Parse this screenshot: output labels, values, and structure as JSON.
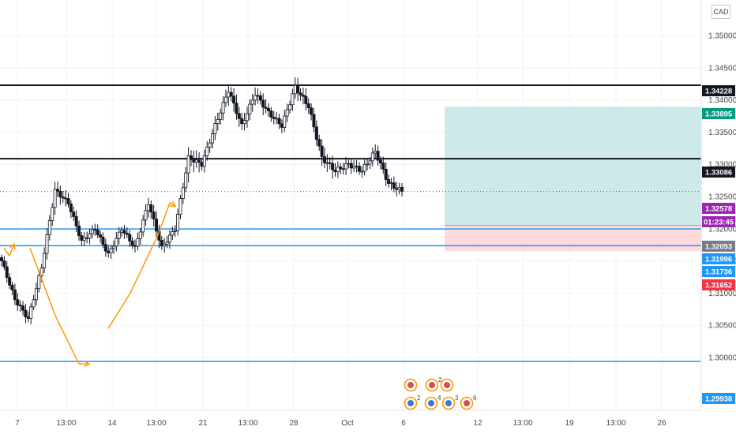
{
  "currency": "CAD",
  "colors": {
    "candle": "#131722",
    "horizontal_line": "#131722",
    "blue_line": "#2196f3",
    "price_line": "#9c27b0",
    "arrow": "#ff9800",
    "profit_zone": "#b2dfdb",
    "loss_zone": "#ffcdd2",
    "target_tag": "#089981",
    "stop_tag": "#f23645",
    "gray_tag": "#787b86",
    "dark_tag": "#131722",
    "blue_tag": "#2196f3",
    "purple_tag": "#9c27b0"
  },
  "chart_data": {
    "type": "candlestick",
    "ylim": [
      1.2925,
      1.3562
    ],
    "y_ticks": [
      "1.35000",
      "1.34500",
      "1.34000",
      "1.33500",
      "1.33000",
      "1.32500",
      "1.32000",
      "1.31500",
      "1.31000",
      "1.30500",
      "1.30000"
    ],
    "x_ticks": [
      "7",
      "13:00",
      "14",
      "13:00",
      "21",
      "13:00",
      "28",
      "Oct",
      "6",
      "12",
      "13:00",
      "19",
      "13:00",
      "26"
    ],
    "price_tags": [
      {
        "label": "1.34228",
        "kind": "dark"
      },
      {
        "label": "1.33895",
        "kind": "target"
      },
      {
        "label": "1.33086",
        "kind": "dark"
      },
      {
        "label": "1.32578",
        "kind": "purple"
      },
      {
        "label": "01:23:45",
        "kind": "purple"
      },
      {
        "label": "1.32053",
        "kind": "gray"
      },
      {
        "label": "1.31996",
        "kind": "blue"
      },
      {
        "label": "1.31736",
        "kind": "blue"
      },
      {
        "label": "1.31652",
        "kind": "stop"
      },
      {
        "label": "1.29938",
        "kind": "blue"
      }
    ],
    "horizontal_lines": [
      {
        "price": 1.34228,
        "style": "black"
      },
      {
        "price": 1.33086,
        "style": "black"
      },
      {
        "price": 1.31996,
        "style": "blue"
      },
      {
        "price": 1.31736,
        "style": "blue"
      },
      {
        "price": 1.29938,
        "style": "blue"
      }
    ],
    "current_price": 1.32578,
    "position": {
      "target": 1.33895,
      "entry": 1.32053,
      "stop": 1.31652
    },
    "event_counts": [
      "2",
      "2",
      "4",
      "3",
      "6"
    ],
    "anchors": [
      {
        "price": 1.315,
        "move": 1.3
      },
      {
        "price": 1.309,
        "move": 1.6
      },
      {
        "price": 1.306,
        "move": 1.4
      },
      {
        "price": 1.314,
        "move": 1.6
      },
      {
        "price": 1.326,
        "move": 1.9
      },
      {
        "price": 1.324,
        "move": 1.5
      },
      {
        "price": 1.318,
        "move": 1.5
      },
      {
        "price": 1.32,
        "move": 1.4
      },
      {
        "price": 1.316,
        "move": 1.5
      },
      {
        "price": 1.32,
        "move": 1.4
      },
      {
        "price": 1.317,
        "move": 1.5
      },
      {
        "price": 1.324,
        "move": 1.9
      },
      {
        "price": 1.317,
        "move": 1.6
      },
      {
        "price": 1.32,
        "move": 1.4
      },
      {
        "price": 1.331,
        "move": 2.4
      },
      {
        "price": 1.33,
        "move": 1.5
      },
      {
        "price": 1.336,
        "move": 1.8
      },
      {
        "price": 1.3415,
        "move": 2.1
      },
      {
        "price": 1.336,
        "move": 1.9
      },
      {
        "price": 1.341,
        "move": 1.9
      },
      {
        "price": 1.338,
        "move": 1.5
      },
      {
        "price": 1.336,
        "move": 1.5
      },
      {
        "price": 1.342,
        "move": 2.0
      },
      {
        "price": 1.339,
        "move": 1.6
      },
      {
        "price": 1.331,
        "move": 2.2
      },
      {
        "price": 1.329,
        "move": 1.6
      },
      {
        "price": 1.33,
        "move": 1.5
      },
      {
        "price": 1.329,
        "move": 1.5
      },
      {
        "price": 1.332,
        "move": 1.6
      },
      {
        "price": 1.327,
        "move": 1.6
      },
      {
        "price": 1.3258,
        "move": 1.3
      }
    ],
    "arrows": [
      [
        [
          5,
          1.317
        ],
        [
          12,
          1.3158
        ],
        [
          18,
          1.3176
        ]
      ],
      [
        [
          38,
          1.317
        ],
        [
          70,
          1.3065
        ],
        [
          100,
          1.299
        ],
        [
          113,
          1.299
        ]
      ],
      [
        [
          137,
          1.3045
        ],
        [
          165,
          1.31
        ],
        [
          200,
          1.319
        ],
        [
          215,
          1.324
        ],
        [
          222,
          1.3235
        ]
      ]
    ]
  }
}
